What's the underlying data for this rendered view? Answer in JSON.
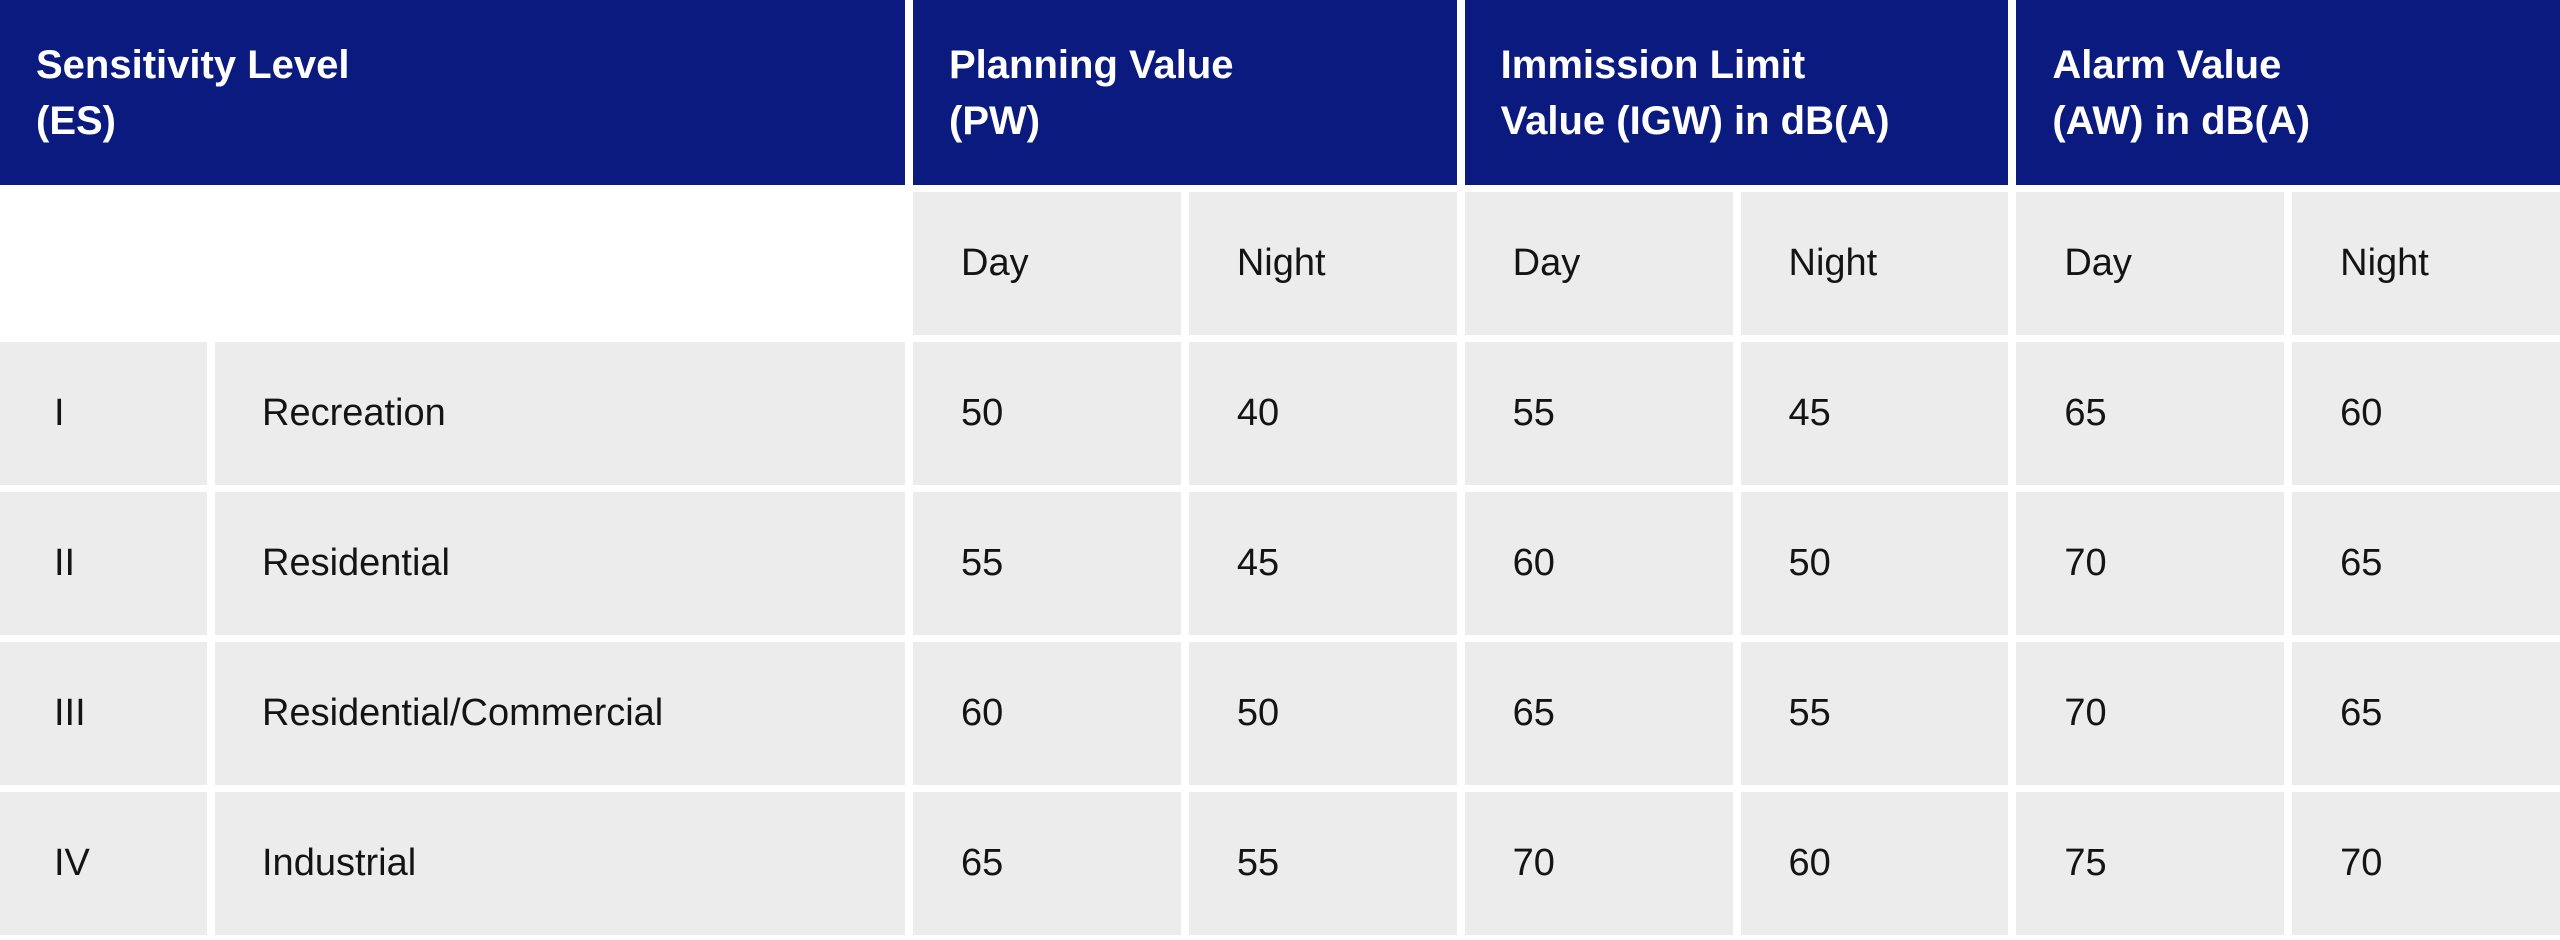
{
  "colors": {
    "page_bg": "#FFFFFF",
    "header_bg": "#0A1A7F",
    "header_text": "#FFFFFF",
    "cell_bg": "#ECECEC",
    "cell_text": "#141414"
  },
  "table": {
    "header_groups": [
      {
        "line1": "Sensitivity Level",
        "line2": "(ES)"
      },
      {
        "line1": "Planning Value",
        "line2": "(PW)"
      },
      {
        "line1": "Immission Limit",
        "line2": "Value (IGW) in dB(A)"
      },
      {
        "line1": "Alarm Value",
        "line2": "(AW) in dB(A)"
      }
    ],
    "sub_headers": [
      "Day",
      "Night",
      "Day",
      "Night",
      "Day",
      "Night"
    ],
    "rows": [
      {
        "level": "I",
        "zone": "Recreation",
        "values": [
          50,
          40,
          55,
          45,
          65,
          60
        ]
      },
      {
        "level": "II",
        "zone": "Residential",
        "values": [
          55,
          45,
          60,
          50,
          70,
          65
        ]
      },
      {
        "level": "III",
        "zone": "Residential/Commercial",
        "values": [
          60,
          50,
          65,
          55,
          70,
          65
        ]
      },
      {
        "level": "IV",
        "zone": "Industrial",
        "values": [
          65,
          55,
          70,
          60,
          75,
          70
        ]
      }
    ]
  },
  "chart_data": {
    "type": "table",
    "header_row": [
      "Sensitivity Level (ES)",
      "Planning Value (PW)",
      "Immission Limit Value (IGW) in dB(A)",
      "Alarm Value (AW) in dB(A)"
    ],
    "sub_header_row": [
      "Day",
      "Night",
      "Day",
      "Night",
      "Day",
      "Night"
    ],
    "rows": [
      [
        "I",
        "Recreation",
        50,
        40,
        55,
        45,
        65,
        60
      ],
      [
        "II",
        "Residential",
        55,
        45,
        60,
        50,
        70,
        65
      ],
      [
        "III",
        "Residential/Commercial",
        60,
        50,
        65,
        55,
        70,
        65
      ],
      [
        "IV",
        "Industrial",
        65,
        55,
        70,
        60,
        75,
        70
      ]
    ]
  }
}
